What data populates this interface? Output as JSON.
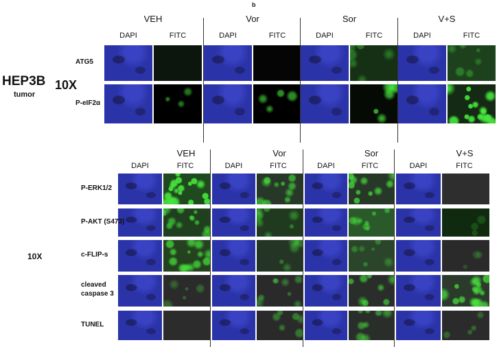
{
  "top_panel": {
    "panel_label": "b",
    "cell_line": "HEP3B",
    "sample": "tumor",
    "magnification": "10X",
    "groups": [
      "VEH",
      "Vor",
      "Sor",
      "V+S"
    ],
    "channels": [
      "DAPI",
      "FITC"
    ],
    "rows": [
      "ATG5",
      "P-eIF2α"
    ]
  },
  "bottom_panel": {
    "magnification": "10X",
    "groups": [
      "VEH",
      "Vor",
      "Sor",
      "V+S"
    ],
    "channels": [
      "DAPI",
      "FITC"
    ],
    "rows": [
      [
        "P-ERK1/2"
      ],
      [
        "P-AKT (S473)"
      ],
      [
        "c-FLIP-s"
      ],
      [
        "cleaved",
        "caspase 3"
      ],
      [
        "TUNEL"
      ]
    ]
  }
}
